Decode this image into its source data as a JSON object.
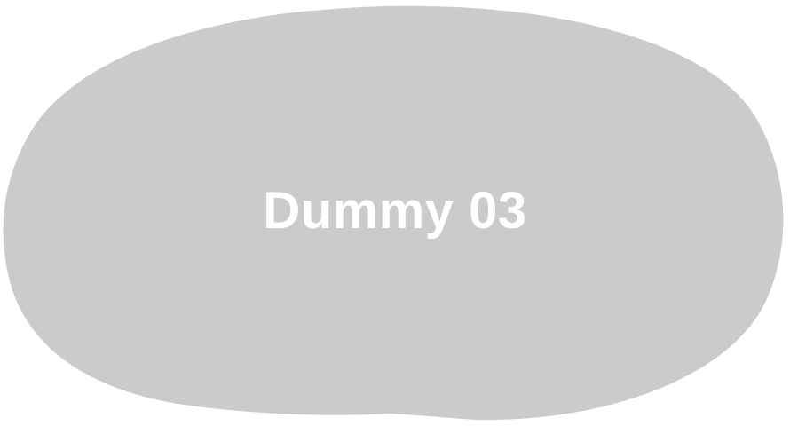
{
  "placeholder": {
    "label": "Dummy 03",
    "shape_color": "#cbcbcb",
    "text_color": "#ffffff"
  }
}
